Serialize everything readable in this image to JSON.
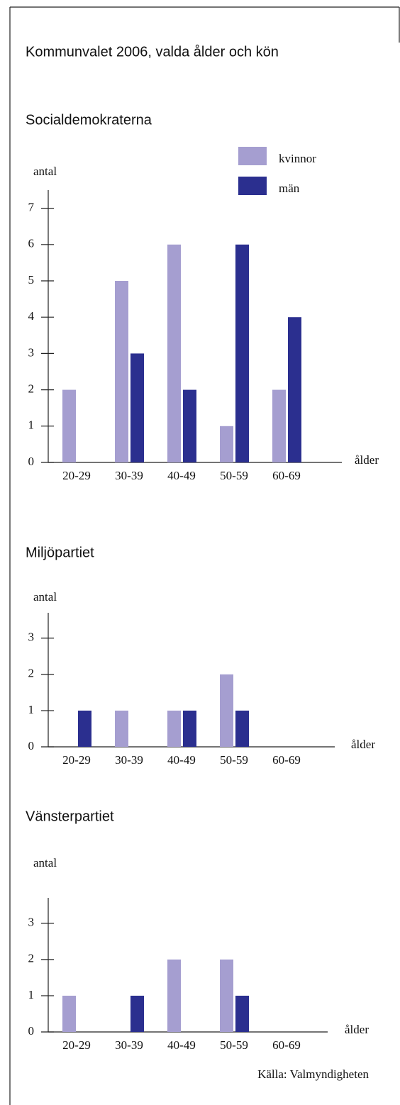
{
  "title": "Kommunvalet 2006, valda ålder och kön",
  "source": "Källa: Valmyndigheten",
  "chart_data": [
    {
      "type": "bar",
      "title": "Socialdemokraterna",
      "ylabel": "antal",
      "xlabel": "ålder",
      "categories": [
        "20-29",
        "30-39",
        "40-49",
        "50-59",
        "60-69"
      ],
      "series": [
        {
          "name": "kvinnor",
          "color": "#a59ed0",
          "values": [
            2,
            5,
            6,
            1,
            2
          ]
        },
        {
          "name": "män",
          "color": "#2b2f8f",
          "values": [
            0,
            3,
            2,
            6,
            4
          ]
        }
      ],
      "ylim": [
        0,
        7.5
      ],
      "yticks": [
        0,
        1,
        2,
        3,
        4,
        5,
        6,
        7
      ],
      "legend": "upper right"
    },
    {
      "type": "bar",
      "title": "Miljöpartiet",
      "ylabel": "antal",
      "xlabel": "ålder",
      "categories": [
        "20-29",
        "30-39",
        "40-49",
        "50-59",
        "60-69"
      ],
      "series": [
        {
          "name": "kvinnor",
          "color": "#a59ed0",
          "values": [
            0,
            1,
            1,
            2,
            0
          ]
        },
        {
          "name": "män",
          "color": "#2b2f8f",
          "values": [
            1,
            0,
            1,
            1,
            0
          ]
        }
      ],
      "ylim": [
        0,
        3.7
      ],
      "yticks": [
        0,
        1,
        2,
        3
      ]
    },
    {
      "type": "bar",
      "title": "Vänsterpartiet",
      "ylabel": "antal",
      "xlabel": "ålder",
      "categories": [
        "20-29",
        "30-39",
        "40-49",
        "50-59",
        "60-69"
      ],
      "series": [
        {
          "name": "kvinnor",
          "color": "#a59ed0",
          "values": [
            1,
            0,
            2,
            2,
            0
          ]
        },
        {
          "name": "män",
          "color": "#2b2f8f",
          "values": [
            0,
            1,
            0,
            1,
            0
          ]
        }
      ],
      "ylim": [
        0,
        3.7
      ],
      "yticks": [
        0,
        1,
        2,
        3
      ]
    }
  ]
}
